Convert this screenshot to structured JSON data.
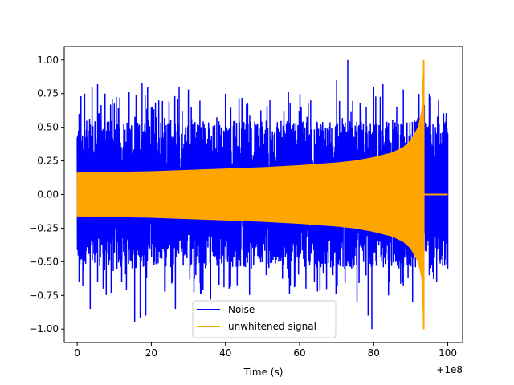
{
  "chart_data": {
    "type": "line",
    "title": "",
    "xlabel": "Time (s)",
    "ylabel": "",
    "x_offset_label": "+1e8",
    "xlim": [
      -3.5,
      104
    ],
    "ylim": [
      -1.1,
      1.1
    ],
    "x_ticks": [
      0,
      20,
      40,
      60,
      80,
      100
    ],
    "x_tick_labels": [
      "0",
      "20",
      "40",
      "60",
      "80",
      "100"
    ],
    "y_ticks": [
      -1.0,
      -0.75,
      -0.5,
      -0.25,
      0.0,
      0.25,
      0.5,
      0.75,
      1.0
    ],
    "y_tick_labels": [
      "−1.00",
      "−0.75",
      "−0.50",
      "−0.25",
      "0.00",
      "0.25",
      "0.50",
      "0.75",
      "1.00"
    ],
    "grid": false,
    "legend_position": "lower center",
    "series": [
      {
        "name": "Noise",
        "color": "#0000ff",
        "x_range": [
          0,
          100
        ],
        "description_values": {
          "typical_band_upper": 0.55,
          "typical_band_lower": -0.55,
          "max": 1.0,
          "min": -1.0
        },
        "peaks_upper": [
          [
            0.5,
            0.6
          ],
          [
            1.0,
            0.73
          ],
          [
            2.0,
            0.75
          ],
          [
            4.0,
            0.8
          ],
          [
            5.5,
            0.82
          ],
          [
            7.5,
            0.75
          ],
          [
            11.5,
            0.72
          ],
          [
            14.0,
            0.76
          ],
          [
            17.5,
            0.83
          ],
          [
            19.0,
            0.8
          ],
          [
            22.0,
            0.7
          ],
          [
            27.5,
            0.8
          ],
          [
            30.0,
            0.78
          ],
          [
            40.0,
            0.75
          ],
          [
            46.0,
            0.68
          ],
          [
            52.0,
            0.7
          ],
          [
            57.0,
            0.76
          ],
          [
            63.0,
            0.7
          ],
          [
            70.0,
            0.85
          ],
          [
            73.0,
            1.0
          ],
          [
            78.0,
            0.65
          ],
          [
            80.0,
            0.8
          ],
          [
            82.5,
            0.82
          ],
          [
            88.0,
            0.78
          ],
          [
            91.0,
            0.55
          ],
          [
            95.0,
            0.75
          ],
          [
            97.5,
            0.7
          ],
          [
            100.0,
            0.45
          ]
        ],
        "peaks_lower": [
          [
            0.5,
            -0.65
          ],
          [
            1.5,
            -0.68
          ],
          [
            3.5,
            -0.85
          ],
          [
            5.5,
            -0.65
          ],
          [
            7.0,
            -0.7
          ],
          [
            12.0,
            -0.65
          ],
          [
            15.5,
            -0.95
          ],
          [
            17.0,
            -0.92
          ],
          [
            18.5,
            -0.9
          ],
          [
            26.5,
            -0.85
          ],
          [
            32.0,
            -0.6
          ],
          [
            36.0,
            -0.78
          ],
          [
            41.0,
            -0.7
          ],
          [
            47.0,
            -0.55
          ],
          [
            51.0,
            -0.6
          ],
          [
            57.0,
            -0.62
          ],
          [
            64.0,
            -0.65
          ],
          [
            69.0,
            -0.6
          ],
          [
            75.5,
            -0.8
          ],
          [
            78.5,
            -0.9
          ],
          [
            79.5,
            -1.0
          ],
          [
            84.0,
            -0.75
          ],
          [
            88.0,
            -0.68
          ],
          [
            90.5,
            -0.8
          ],
          [
            95.0,
            -0.6
          ],
          [
            97.0,
            -0.65
          ],
          [
            100.0,
            -0.55
          ]
        ]
      },
      {
        "name": "unwhitened signal",
        "color": "#ffa500",
        "x_range": [
          0,
          100
        ],
        "envelope": [
          [
            0,
            0.16
          ],
          [
            10,
            0.165
          ],
          [
            20,
            0.17
          ],
          [
            30,
            0.18
          ],
          [
            40,
            0.19
          ],
          [
            50,
            0.2
          ],
          [
            60,
            0.215
          ],
          [
            70,
            0.235
          ],
          [
            75,
            0.25
          ],
          [
            80,
            0.275
          ],
          [
            85,
            0.31
          ],
          [
            88,
            0.35
          ],
          [
            90,
            0.4
          ],
          [
            92,
            0.5
          ],
          [
            93,
            0.62
          ],
          [
            93.5,
            1.0
          ],
          [
            94.0,
            0.0
          ],
          [
            100,
            0.0
          ]
        ],
        "merger_time": 93.5
      }
    ]
  }
}
